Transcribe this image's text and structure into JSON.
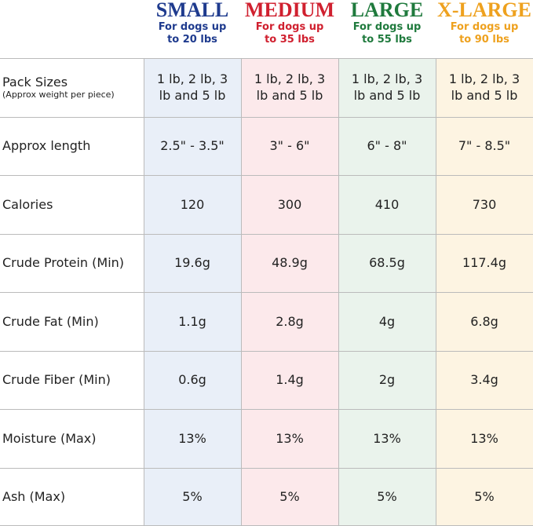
{
  "table": {
    "columns": [
      {
        "name": "SMALL",
        "subtitle": "For dogs up to 20 lbs"
      },
      {
        "name": "MEDIUM",
        "subtitle": "For dogs up to 35 lbs"
      },
      {
        "name": "LARGE",
        "subtitle": "For dogs up to 55 lbs"
      },
      {
        "name": "X-LARGE",
        "subtitle": "For dogs up to 90 lbs"
      }
    ],
    "rows": [
      {
        "label": "Pack Sizes",
        "sublabel": "(Approx weight per piece)",
        "values": [
          "1 lb, 2 lb, 3 lb and 5 lb",
          "1 lb, 2 lb, 3 lb and 5 lb",
          "1 lb, 2 lb, 3 lb and 5 lb",
          "1 lb, 2 lb, 3 lb and 5 lb"
        ]
      },
      {
        "label": "Approx length",
        "values": [
          "2.5\" - 3.5\"",
          "3\" - 6\"",
          "6\" - 8\"",
          "7\" - 8.5\""
        ]
      },
      {
        "label": "Calories",
        "values": [
          "120",
          "300",
          "410",
          "730"
        ]
      },
      {
        "label": "Crude Protein (Min)",
        "values": [
          "19.6g",
          "48.9g",
          "68.5g",
          "117.4g"
        ]
      },
      {
        "label": "Crude Fat (Min)",
        "values": [
          "1.1g",
          "2.8g",
          "4g",
          "6.8g"
        ]
      },
      {
        "label": "Crude Fiber (Min)",
        "values": [
          "0.6g",
          "1.4g",
          "2g",
          "3.4g"
        ]
      },
      {
        "label": "Moisture (Max)",
        "values": [
          "13%",
          "13%",
          "13%",
          "13%"
        ]
      },
      {
        "label": "Ash (Max)",
        "values": [
          "5%",
          "5%",
          "5%",
          "5%"
        ]
      }
    ]
  }
}
